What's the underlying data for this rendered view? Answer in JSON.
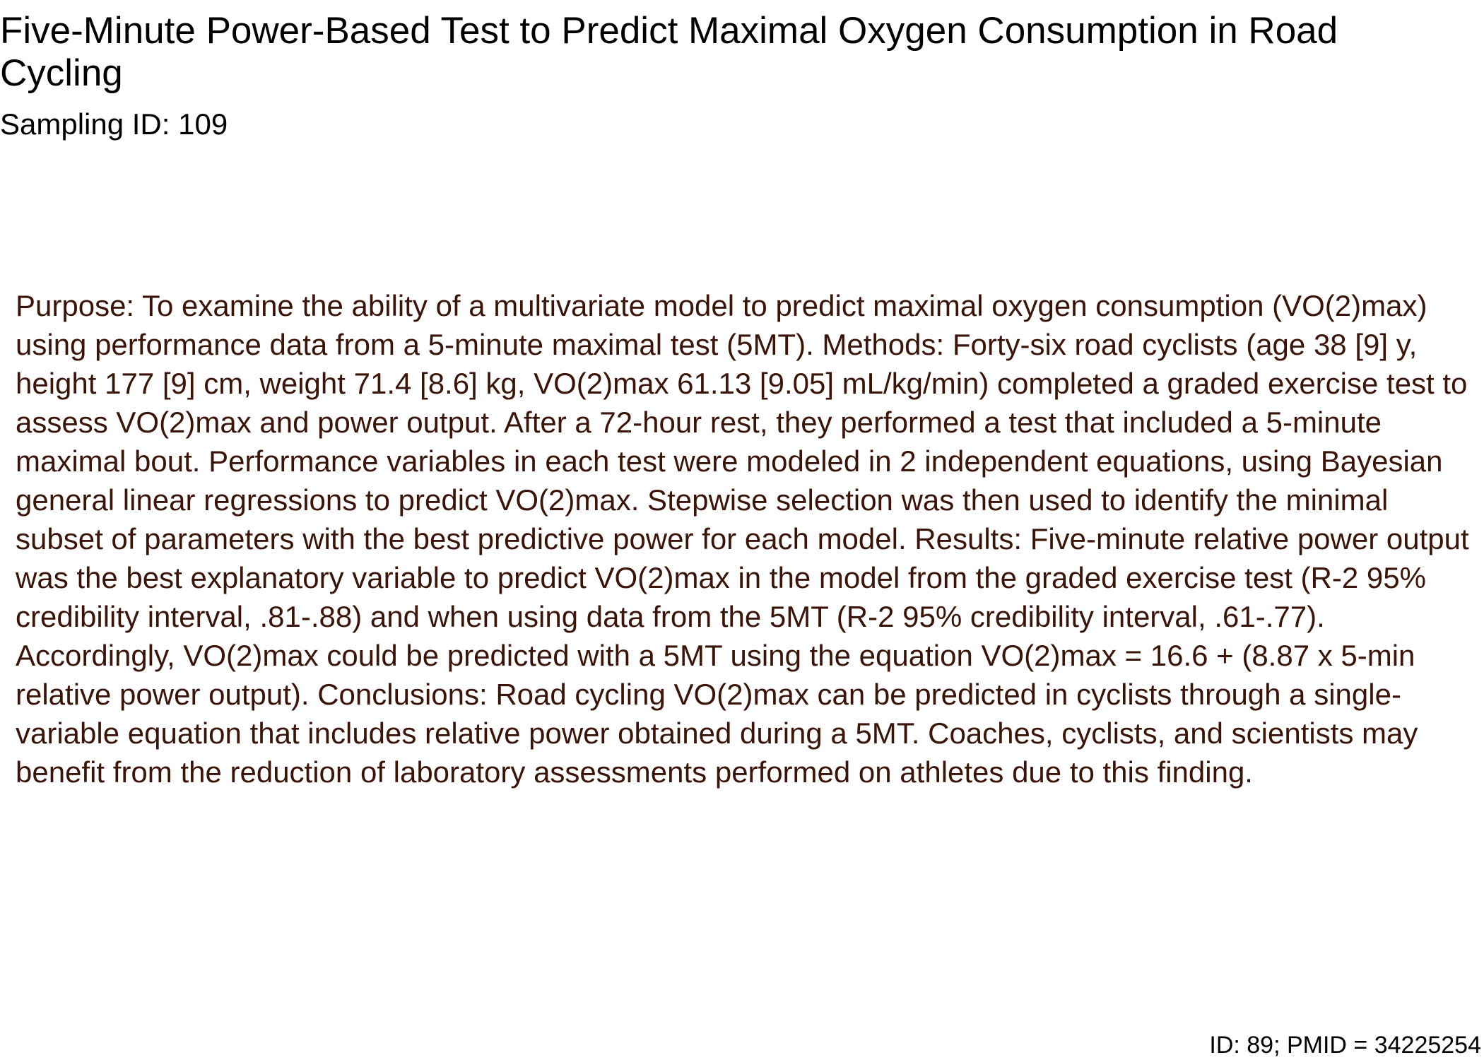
{
  "document": {
    "title": "Five-Minute Power-Based Test to Predict Maximal Oxygen Consumption in Road Cycling",
    "sampling_id": "Sampling ID: 109",
    "abstract": "Purpose: To examine the ability of a multivariate model to predict maximal oxygen consumption (VO(2)max) using performance data from a 5-minute maximal test (5MT). Methods: Forty-six road cyclists (age 38 [9] y, height 177 [9] cm, weight 71.4 [8.6] kg, VO(2)max 61.13 [9.05] mL/kg/min) completed a graded exercise test to assess VO(2)max and power output. After a 72-hour rest, they performed a test that included a 5-minute maximal bout. Performance variables in each test were modeled in 2 independent equations, using Bayesian general linear regressions to predict VO(2)max. Stepwise selection was then used to identify the minimal subset of parameters with the best predictive power for each model. Results: Five-minute relative power output was the best explanatory variable to predict VO(2)max in the model from the graded exercise test (R-2 95% credibility interval, .81-.88) and when using data from the 5MT (R-2 95% credibility interval, .61-.77). Accordingly, VO(2)max could be predicted with a 5MT using the equation VO(2)max = 16.6 + (8.87 x 5-min relative power output). Conclusions: Road cycling VO(2)max can be predicted in cyclists through a single-variable equation that includes relative power obtained during a 5MT. Coaches, cyclists, and scientists may benefit from the reduction of laboratory assessments performed on athletes due to this finding.",
    "footer_id": "ID: 89; PMID = 34225254"
  },
  "colors": {
    "title_text": "#000000",
    "abstract_text": "#3a1408",
    "background": "#ffffff"
  }
}
